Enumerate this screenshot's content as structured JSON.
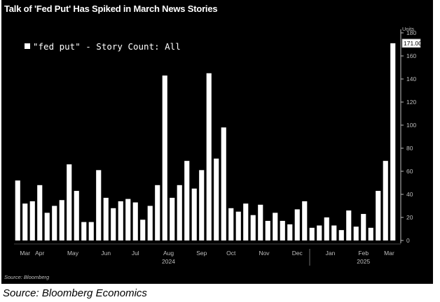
{
  "title": "Talk of 'Fed Put' Has Spiked in March News Stories",
  "source_small": "Source: Bloomberg",
  "footer": "Source: Bloomberg Economics",
  "chart_data": {
    "type": "bar",
    "title": "Talk of 'Fed Put' Has Spiked in March News Stories",
    "legend": {
      "placement": "top-left",
      "entries": [
        "\"fed put\" - Story Count: All"
      ]
    },
    "series": [
      {
        "name": "\"fed put\" - Story Count: All",
        "values": [
          52,
          32,
          34,
          48,
          24,
          30,
          35,
          66,
          43,
          16,
          16,
          61,
          37,
          28,
          34,
          36,
          33,
          18,
          30,
          48,
          143,
          37,
          48,
          69,
          45,
          61,
          145,
          71,
          98,
          28,
          25,
          32,
          22,
          31,
          17,
          24,
          17,
          14,
          27,
          34,
          11,
          13,
          20,
          13,
          9,
          26,
          12,
          23,
          11,
          43,
          69,
          171
        ]
      }
    ],
    "last_value_label": "171.00",
    "x_month_labels": [
      "Mar",
      "Apr",
      "May",
      "Jun",
      "Jul",
      "Aug",
      "Sep",
      "Oct",
      "Nov",
      "Dec",
      "Jan",
      "Feb",
      "Mar"
    ],
    "x_month_positions": [
      1,
      3,
      7.5,
      12,
      16,
      20.5,
      25,
      29,
      33.5,
      38,
      42.5,
      47,
      50.5
    ],
    "x_year_labels": [
      "2024",
      "2025"
    ],
    "x_year_positions": [
      20.5,
      47
    ],
    "yaxis": {
      "side": "right",
      "unit": "Units",
      "ticks": [
        0,
        20,
        40,
        60,
        80,
        100,
        120,
        140,
        160,
        180
      ],
      "ylim": [
        0,
        180
      ]
    },
    "grid": false,
    "colors": {
      "bar": "#ffffff",
      "background": "#000000",
      "axis_text": "#bfbfbf"
    }
  }
}
